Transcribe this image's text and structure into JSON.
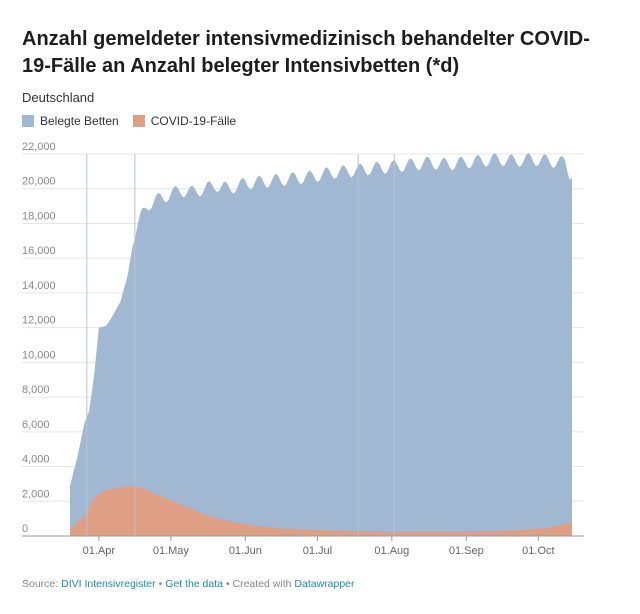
{
  "title": "Anzahl gemeldeter intensivmedizinisch behandelter COVID-19-Fälle an Anzahl belegter Intensivbetten (*d)",
  "subtitle": "Deutschland",
  "footer": {
    "source_label": "Source:",
    "source_link": "DIVI Intensivregister",
    "sep1": "•",
    "get_data": "Get the data",
    "sep2": "•",
    "created_with": "Created with",
    "datawrapper": "Datawrapper"
  },
  "colors": {
    "beds": "#a0b8d2",
    "covid": "#df9f85",
    "grid": "#e6e6e6",
    "marker_line": "#b9c4d0"
  },
  "chart_data": {
    "type": "area",
    "title": "Anzahl gemeldeter intensivmedizinisch behandelter COVID-19-Fälle an Anzahl belegter Intensivbetten (*d)",
    "subtitle": "Deutschland",
    "ylim": [
      0,
      22000
    ],
    "y_ticks": [
      22000,
      20000,
      18000,
      16000,
      14000,
      12000,
      10000,
      8000,
      6000,
      4000,
      2000,
      0
    ],
    "y_tick_labels": [
      "22,000",
      "20,000",
      "18,000",
      "16,000",
      "14,000",
      "12,000",
      "10,000",
      "8,000",
      "6,000",
      "4,000",
      "2,000",
      "0"
    ],
    "x_ticks": [
      "2020-04-01",
      "2020-05-01",
      "2020-06-01",
      "2020-07-01",
      "2020-08-01",
      "2020-09-01",
      "2020-10-01"
    ],
    "x_tick_labels": [
      "01.Apr",
      "01.May",
      "01.Jun",
      "01.Jul",
      "01.Aug",
      "01.Sep",
      "01.Oct"
    ],
    "xlim": [
      "2020-03-20",
      "2020-10-20"
    ],
    "grid": true,
    "legend_position": "top-left",
    "annotation_dates": [
      "2020-03-27",
      "2020-04-16",
      "2020-07-18",
      "2020-08-02"
    ],
    "series": [
      {
        "name": "Belegte Betten",
        "color": "#a0b8d2",
        "points": [
          [
            "2020-03-20",
            2900
          ],
          [
            "2020-03-23",
            4500
          ],
          [
            "2020-03-26",
            6500
          ],
          [
            "2020-03-28",
            7200
          ],
          [
            "2020-03-30",
            9200
          ],
          [
            "2020-04-01",
            12000
          ],
          [
            "2020-04-04",
            12100
          ],
          [
            "2020-04-06",
            12500
          ],
          [
            "2020-04-08",
            13000
          ],
          [
            "2020-04-10",
            13500
          ],
          [
            "2020-04-13",
            15000
          ],
          [
            "2020-04-15",
            17000
          ],
          [
            "2020-04-17",
            17800
          ],
          [
            "2020-04-19",
            18500
          ],
          [
            "2020-04-21",
            19000
          ],
          [
            "2020-04-24",
            19300
          ],
          [
            "2020-04-28",
            19500
          ],
          [
            "2020-05-01",
            19700
          ],
          [
            "2020-05-05",
            19900
          ],
          [
            "2020-05-10",
            19800
          ],
          [
            "2020-05-15",
            20000
          ],
          [
            "2020-05-20",
            20200
          ],
          [
            "2020-05-25",
            20000
          ],
          [
            "2020-06-01",
            20300
          ],
          [
            "2020-06-08",
            20400
          ],
          [
            "2020-06-15",
            20500
          ],
          [
            "2020-06-22",
            20600
          ],
          [
            "2020-06-29",
            20700
          ],
          [
            "2020-07-06",
            20900
          ],
          [
            "2020-07-13",
            21000
          ],
          [
            "2020-07-20",
            21100
          ],
          [
            "2020-07-27",
            21200
          ],
          [
            "2020-08-03",
            21300
          ],
          [
            "2020-08-10",
            21400
          ],
          [
            "2020-08-17",
            21500
          ],
          [
            "2020-08-24",
            21400
          ],
          [
            "2020-08-31",
            21500
          ],
          [
            "2020-09-07",
            21600
          ],
          [
            "2020-09-14",
            21700
          ],
          [
            "2020-09-21",
            21600
          ],
          [
            "2020-09-28",
            21700
          ],
          [
            "2020-10-05",
            21600
          ],
          [
            "2020-10-12",
            21500
          ],
          [
            "2020-10-15",
            20600
          ]
        ]
      },
      {
        "name": "COVID-19-Fälle",
        "color": "#df9f85",
        "points": [
          [
            "2020-03-20",
            400
          ],
          [
            "2020-03-24",
            900
          ],
          [
            "2020-03-27",
            1300
          ],
          [
            "2020-03-30",
            2200
          ],
          [
            "2020-04-03",
            2600
          ],
          [
            "2020-04-08",
            2750
          ],
          [
            "2020-04-13",
            2850
          ],
          [
            "2020-04-17",
            2850
          ],
          [
            "2020-04-21",
            2650
          ],
          [
            "2020-04-26",
            2350
          ],
          [
            "2020-05-01",
            2050
          ],
          [
            "2020-05-08",
            1650
          ],
          [
            "2020-05-15",
            1250
          ],
          [
            "2020-05-22",
            950
          ],
          [
            "2020-05-29",
            750
          ],
          [
            "2020-06-05",
            600
          ],
          [
            "2020-06-15",
            450
          ],
          [
            "2020-06-25",
            380
          ],
          [
            "2020-07-05",
            330
          ],
          [
            "2020-07-15",
            280
          ],
          [
            "2020-07-25",
            250
          ],
          [
            "2020-08-05",
            230
          ],
          [
            "2020-08-15",
            240
          ],
          [
            "2020-08-25",
            240
          ],
          [
            "2020-09-05",
            250
          ],
          [
            "2020-09-15",
            280
          ],
          [
            "2020-09-25",
            350
          ],
          [
            "2020-10-05",
            480
          ],
          [
            "2020-10-15",
            800
          ]
        ]
      }
    ]
  }
}
